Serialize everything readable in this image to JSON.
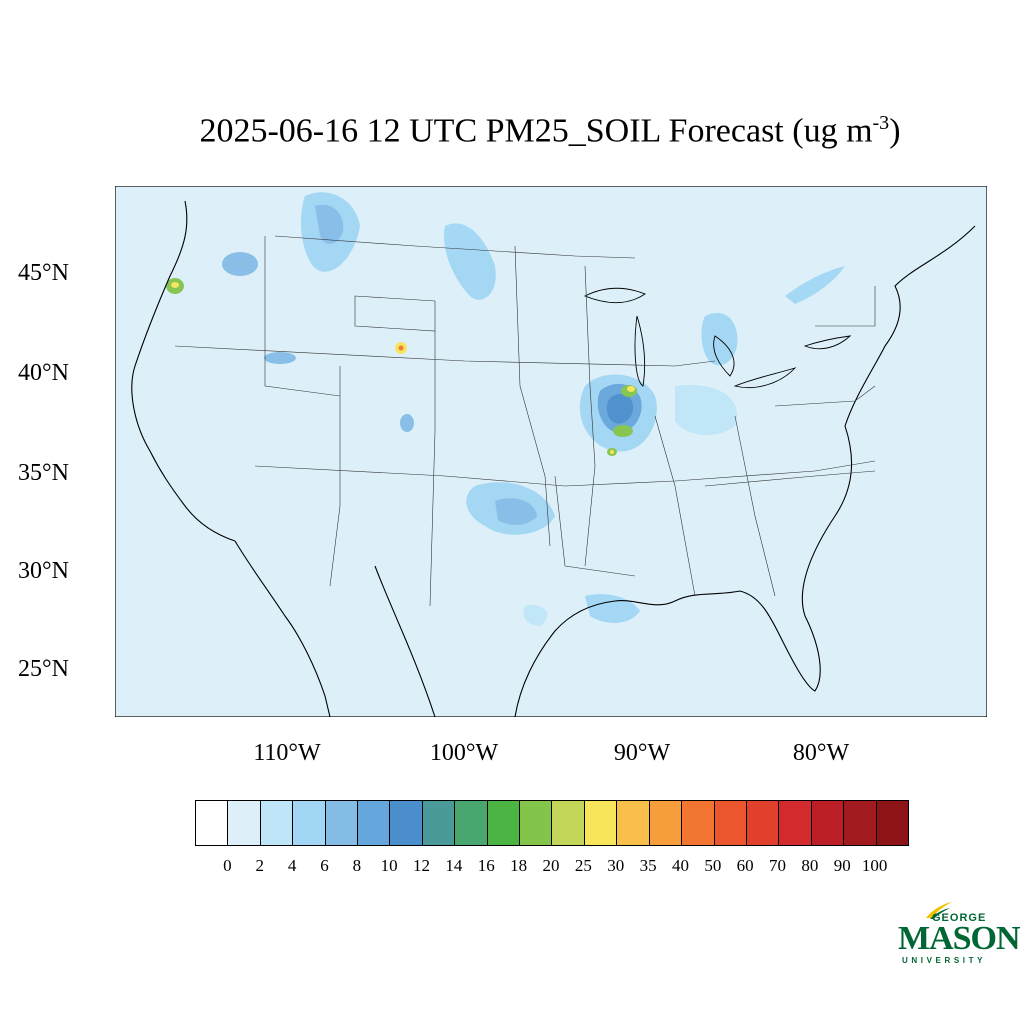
{
  "title": {
    "main": "2025-06-16 12 UTC PM25_SOIL Forecast (ug m",
    "superscript": "-3",
    "close": ")"
  },
  "map": {
    "background_color": "#DDF0FA",
    "lat_labels": [
      "45°N",
      "40°N",
      "35°N",
      "30°N",
      "25°N"
    ],
    "lon_labels": [
      "110°W",
      "100°W",
      "90°W",
      "80°W"
    ]
  },
  "colorbar": {
    "levels": [
      "0",
      "2",
      "4",
      "6",
      "8",
      "10",
      "12",
      "14",
      "16",
      "18",
      "20",
      "25",
      "30",
      "35",
      "40",
      "50",
      "60",
      "70",
      "80",
      "90",
      "100"
    ],
    "colors": [
      "#FFFFFF",
      "#DDF0FA",
      "#BFE6F8",
      "#A1D6F4",
      "#84BCE6",
      "#65A6DC",
      "#4A8ECC",
      "#4A9A9A",
      "#48A66E",
      "#4BB443",
      "#83C44B",
      "#C3D65A",
      "#F7E65A",
      "#F8C04A",
      "#F69D3C",
      "#F27531",
      "#EC562E",
      "#E0402C",
      "#D22A2D",
      "#BC1E25",
      "#A11A1E",
      "#8C1416"
    ]
  },
  "logo": {
    "line1": "GEORGE",
    "line2": "MASON",
    "line3": "UNIVERSITY",
    "color": "#006633",
    "accent": "#F2C200"
  }
}
